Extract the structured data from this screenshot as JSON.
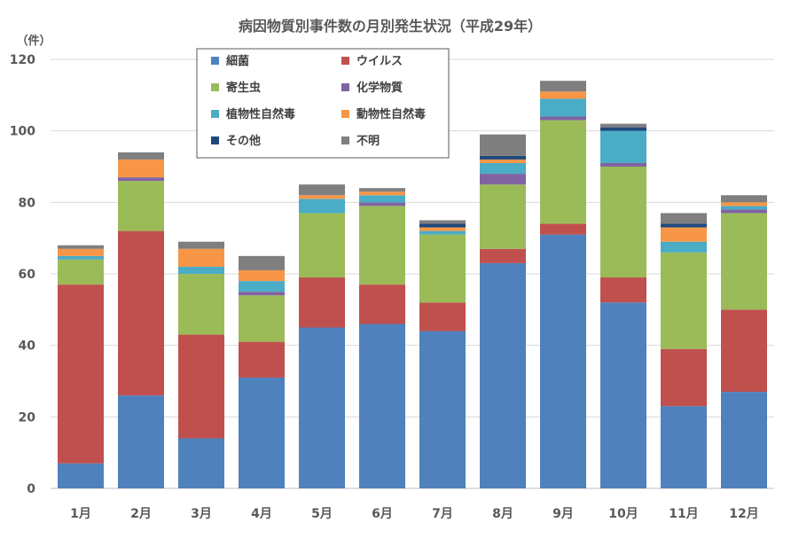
{
  "chart_data": {
    "type": "bar",
    "stacked": true,
    "title": "病因物質別事件数の月別発生状況（平成29年）",
    "ylabel": "（件）",
    "xlabel": "",
    "ylim": [
      0,
      120
    ],
    "yticks": [
      0,
      20,
      40,
      60,
      80,
      100,
      120
    ],
    "grid": true,
    "legend_position": "top-center",
    "categories": [
      "1月",
      "2月",
      "3月",
      "4月",
      "5月",
      "6月",
      "7月",
      "8月",
      "9月",
      "10月",
      "11月",
      "12月"
    ],
    "series": [
      {
        "name": "細菌",
        "color": "#4F81BD",
        "values": [
          7,
          26,
          14,
          31,
          45,
          46,
          44,
          63,
          71,
          52,
          23,
          27
        ]
      },
      {
        "name": "ウイルス",
        "color": "#C0504D",
        "values": [
          50,
          46,
          29,
          10,
          14,
          11,
          8,
          4,
          3,
          7,
          16,
          23
        ]
      },
      {
        "name": "寄生虫",
        "color": "#9BBB59",
        "values": [
          7,
          14,
          17,
          13,
          18,
          22,
          19,
          18,
          29,
          31,
          27,
          27
        ]
      },
      {
        "name": "化学物質",
        "color": "#8064A2",
        "values": [
          0,
          1,
          0,
          1,
          0,
          1,
          0,
          3,
          1,
          1,
          0,
          1
        ]
      },
      {
        "name": "植物性自然毒",
        "color": "#4BACC6",
        "values": [
          1,
          0,
          2,
          3,
          4,
          2,
          1,
          3,
          5,
          9,
          3,
          1
        ]
      },
      {
        "name": "動物性自然毒",
        "color": "#F79646",
        "values": [
          2,
          5,
          5,
          3,
          1,
          1,
          1,
          1,
          2,
          0,
          4,
          1
        ]
      },
      {
        "name": "その他",
        "color": "#1F497D",
        "values": [
          0,
          0,
          0,
          0,
          0,
          0,
          1,
          1,
          0,
          1,
          1,
          0
        ]
      },
      {
        "name": "不明",
        "color": "#7F7F7F",
        "values": [
          1,
          2,
          2,
          4,
          3,
          1,
          1,
          6,
          3,
          1,
          3,
          2
        ]
      }
    ]
  }
}
